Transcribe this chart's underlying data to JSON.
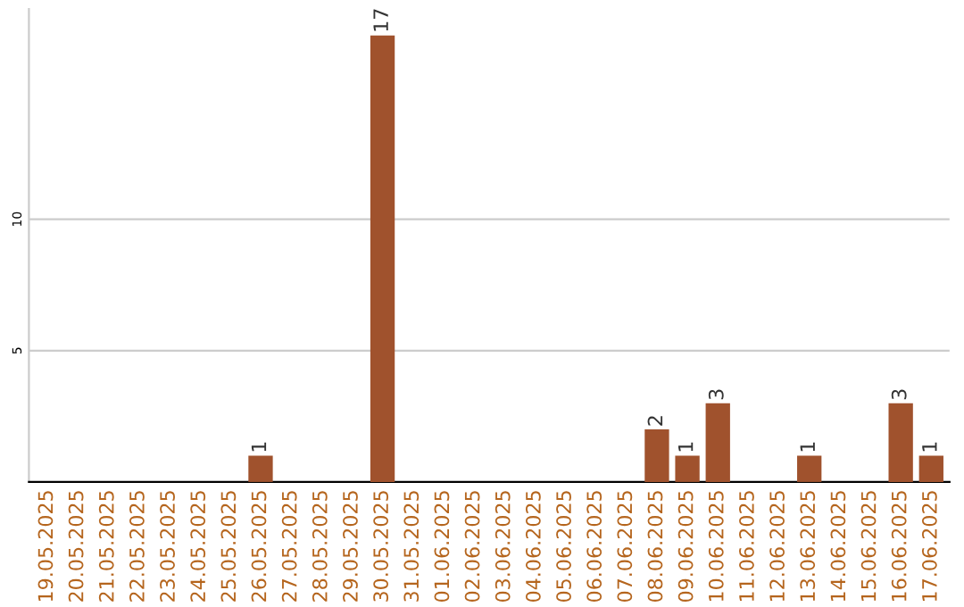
{
  "chart_data": {
    "type": "bar",
    "categories": [
      "19.05.2025",
      "20.05.2025",
      "21.05.2025",
      "22.05.2025",
      "23.05.2025",
      "24.05.2025",
      "25.05.2025",
      "26.05.2025",
      "27.05.2025",
      "28.05.2025",
      "29.05.2025",
      "30.05.2025",
      "31.05.2025",
      "01.06.2025",
      "02.06.2025",
      "03.06.2025",
      "04.06.2025",
      "05.06.2025",
      "06.06.2025",
      "07.06.2025",
      "08.06.2025",
      "09.06.2025",
      "10.06.2025",
      "11.06.2025",
      "12.06.2025",
      "13.06.2025",
      "14.06.2025",
      "15.06.2025",
      "16.06.2025",
      "17.06.2025"
    ],
    "values": [
      0,
      0,
      0,
      0,
      0,
      0,
      0,
      1,
      0,
      0,
      0,
      17,
      0,
      0,
      0,
      0,
      0,
      0,
      0,
      0,
      2,
      1,
      3,
      0,
      0,
      1,
      0,
      0,
      3,
      1
    ],
    "value_labels": [
      null,
      null,
      null,
      null,
      null,
      null,
      null,
      "1",
      null,
      null,
      null,
      "17",
      null,
      null,
      null,
      null,
      null,
      null,
      null,
      null,
      "2",
      "1",
      "3",
      null,
      null,
      "1",
      null,
      null,
      "3",
      "1"
    ],
    "color": "#a0522d",
    "ylim": [
      0,
      18
    ],
    "yticks": [
      5,
      10
    ],
    "grid": "y",
    "legend": false
  }
}
